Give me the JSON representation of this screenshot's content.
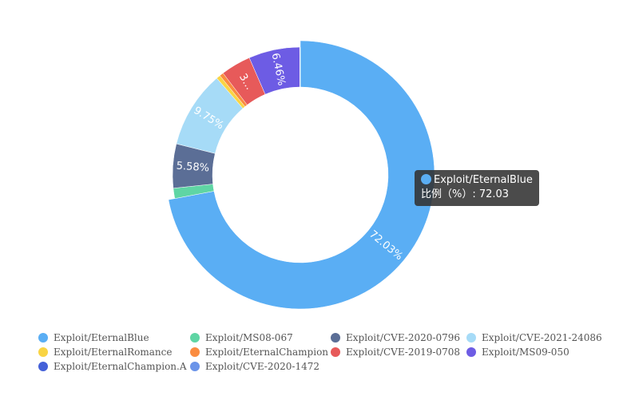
{
  "chart_data": {
    "type": "pie",
    "variant": "donut",
    "title": "",
    "center": [
      376,
      219
    ],
    "inner_radius": 110,
    "outer_radius": 160,
    "emphasis_outer_radius": 168,
    "categories": [
      "Exploit/EternalBlue",
      "Exploit/MS08-067",
      "Exploit/CVE-2020-0796",
      "Exploit/CVE-2021-24086",
      "Exploit/EternalRomance",
      "Exploit/EternalChampion",
      "Exploit/CVE-2019-0708",
      "Exploit/MS09-050",
      "Exploit/EternalChampion.A",
      "Exploit/CVE-2020-1472"
    ],
    "values": [
      72.03,
      1.3,
      5.58,
      9.75,
      0.5,
      0.5,
      3.8,
      6.46,
      0.04,
      0.04
    ],
    "colors": [
      "#5aaef4",
      "#5fd5a4",
      "#5b6e96",
      "#a6dbf7",
      "#f9d443",
      "#fa8c40",
      "#e75a5a",
      "#6d5ce4",
      "#4461d8",
      "#6b94e9"
    ],
    "data_labels": [
      "72.03%",
      "",
      "5.58%",
      "9.75%",
      "",
      "",
      "3...",
      "6.46%",
      "",
      ""
    ],
    "emphasized_index": 0,
    "legend_position": "bottom"
  },
  "legend": {
    "rows": [
      [
        0,
        1,
        2,
        3
      ],
      [
        4,
        5,
        6,
        7
      ],
      [
        8,
        9
      ]
    ]
  },
  "tooltip": {
    "name": "Exploit/EternalBlue",
    "label": "比例（%）: 72.03",
    "color": "#5aaef4"
  }
}
